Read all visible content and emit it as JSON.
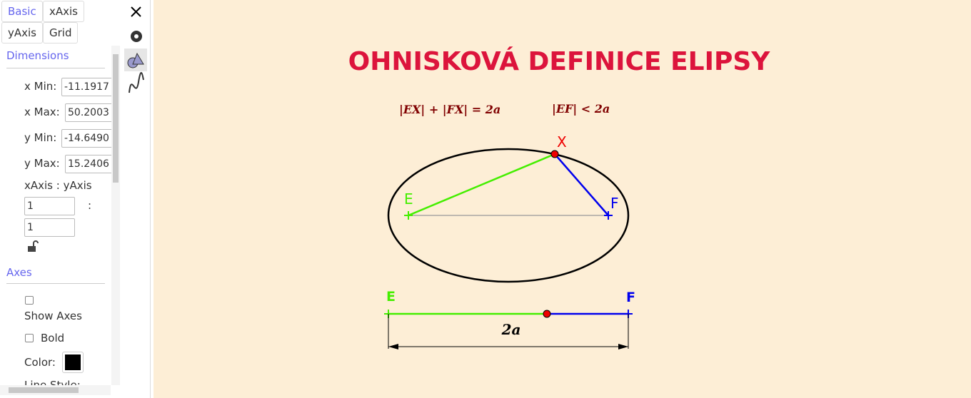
{
  "sidebar": {
    "tabs": [
      "Basic",
      "xAxis",
      "yAxis",
      "Grid"
    ],
    "dimensions": {
      "heading": "Dimensions",
      "fields": [
        {
          "label": "x Min:",
          "value": "-11.1917"
        },
        {
          "label": "x Max:",
          "value": "50.2003"
        },
        {
          "label": "y Min:",
          "value": "-14.6490"
        },
        {
          "label": "y Max:",
          "value": "15.2406"
        }
      ],
      "ratio_label": "xAxis : yAxis",
      "ratio_sep": ":",
      "ratio_x": "1",
      "ratio_y": "1"
    },
    "axes": {
      "heading": "Axes",
      "show_axes": "Show Axes",
      "bold": "Bold",
      "color": "Color:",
      "line_style": "Line Style:"
    }
  },
  "canvas": {
    "title": "OHNISKOVÁ DEFINICE ELIPSY",
    "formula_1": "|EX| + |FX| = 2a",
    "formula_2": "|EF| < 2a",
    "ellipse_labels": {
      "x": "X",
      "e": "E",
      "f": "F"
    },
    "segment_labels": {
      "e": "E",
      "f": "F",
      "length": "2a"
    }
  }
}
